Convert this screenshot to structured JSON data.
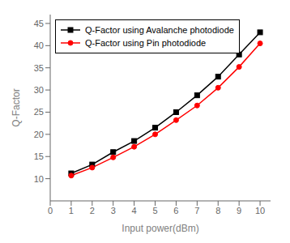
{
  "chart_data": {
    "type": "line",
    "x": [
      1,
      2,
      3,
      4,
      5,
      6,
      7,
      8,
      9,
      10
    ],
    "series": [
      {
        "name": "Q-Factor using Avalanche photodiode",
        "color": "#000000",
        "marker": "square",
        "values": [
          11.2,
          13.2,
          16.0,
          18.5,
          21.5,
          25.0,
          28.8,
          33.0,
          38.0,
          43.0
        ]
      },
      {
        "name": "Q-Factor using Pin photodiode",
        "color": "#ff0000",
        "marker": "circle",
        "values": [
          10.7,
          12.5,
          14.8,
          17.2,
          20.0,
          23.2,
          26.5,
          30.5,
          35.2,
          40.5
        ]
      }
    ],
    "xlabel": "Input power(dBm)",
    "ylabel": "Q-Factor",
    "xlim": [
      0,
      10.5
    ],
    "ylim": [
      5,
      47
    ],
    "xticks": [
      0,
      1,
      2,
      3,
      4,
      5,
      6,
      7,
      8,
      9,
      10
    ],
    "yticks": [
      10,
      15,
      20,
      25,
      30,
      35,
      40,
      45
    ],
    "legend": "upper left",
    "grid": false
  }
}
